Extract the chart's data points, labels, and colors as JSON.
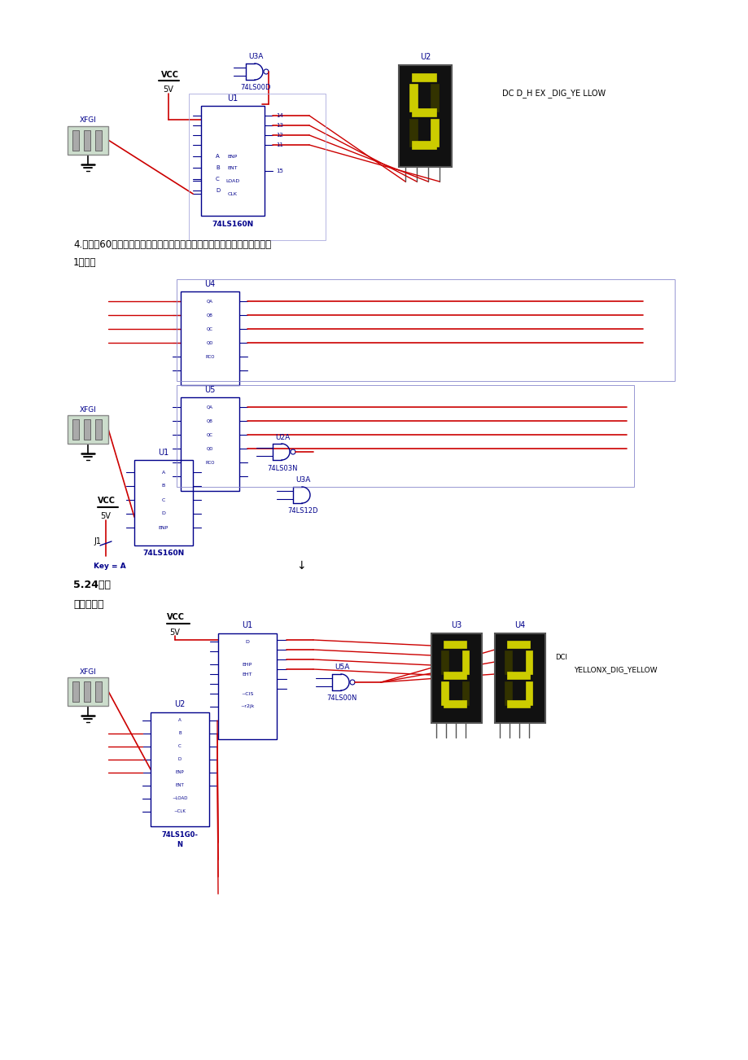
{
  "background_color": "#ffffff",
  "page_width": 9.2,
  "page_height": 13.02,
  "text_color": "#000000",
  "blue_color": "#0000bb",
  "red_color": "#cc0000",
  "dark_blue": "#00008b",
  "med_blue": "#4444cc",
  "text1": "4.设计模60计数器，并设计开关电路，是电路具有清零，计数，保持的作用",
  "text2": "1）计数",
  "text3": "5.24进制",
  "text4": "整体清零法",
  "vcc_label": "VCC",
  "5v_label": "5V",
  "u1_label": "U1",
  "u2_label": "U2",
  "u3a_label": "U3A",
  "u4_label": "U4",
  "u5_label": "U5",
  "chip1_label": "74LS160N",
  "chip2_label": "74LS00D",
  "chip3_label": "74LS03N",
  "chip4_label": "74LS12D",
  "chip5_label": "74LS160N",
  "xfgi_label": "XFGI",
  "display_label": "DC D_H EX _DIG_YE LLOW",
  "key_label": "Key = A",
  "j1_label": "J1",
  "u2a_label": "U2A",
  "u3a2_label": "U3A",
  "u5a_label": "U5A",
  "chip_u1b": "74LS160N",
  "chip_u2b": "74LS1G0-\nN",
  "chip_u5b": "74LS00N",
  "display2_label": "YELLONX_DIG_YELLOW",
  "u3b_label": "U3",
  "u4b_label": "U4",
  "u1b_label": "U1",
  "u2b_label": "U2",
  "u5b_label": "U5A",
  "seg_on": "#cccc00",
  "seg_off": "#333300",
  "display_bg": "#111111",
  "xfgi_face": "#ccddcc",
  "xfgi_edge": "#888888",
  "chip_edge": "#00008b",
  "wire_red": "#cc0000",
  "wire_blue": "#00008b"
}
